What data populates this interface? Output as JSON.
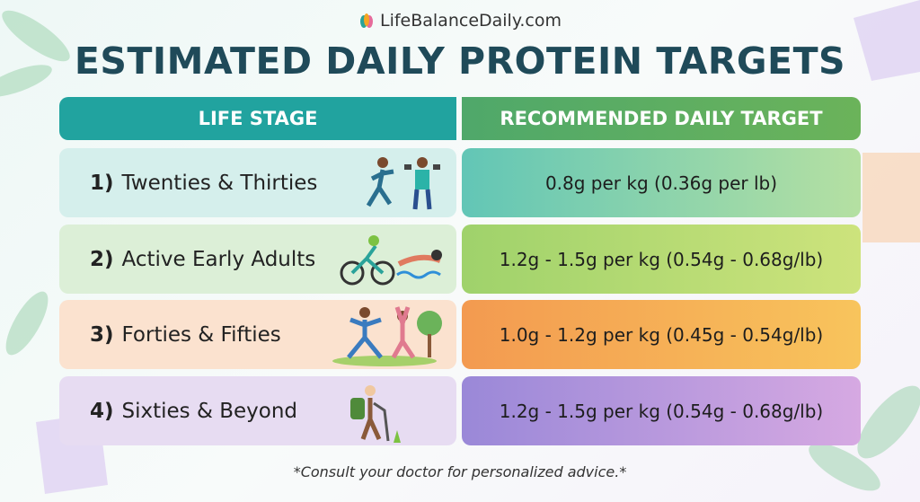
{
  "brand": "LifeBalanceDaily.com",
  "title": "ESTIMATED DAILY PROTEIN TARGETS",
  "table": {
    "header": [
      "LIFE STAGE",
      "RECOMMENDED DAILY TARGET"
    ],
    "rows": [
      [
        "1)",
        "Twenties & Thirties",
        "0.8g per kg (0.36g per lb)"
      ],
      [
        "2)",
        "Active Early Adults",
        "1.2g - 1.5g per kg (0.54g - 0.68g/lb)"
      ],
      [
        "3)",
        "Forties & Fifties",
        "1.0g - 1.2g per kg (0.45g - 0.54g/lb)"
      ],
      [
        "4)",
        "Sixties & Beyond",
        "1.2g - 1.5g per kg (0.54g - 0.68g/lb)"
      ]
    ]
  },
  "footnote": "*Consult your doctor for personalized advice.*"
}
